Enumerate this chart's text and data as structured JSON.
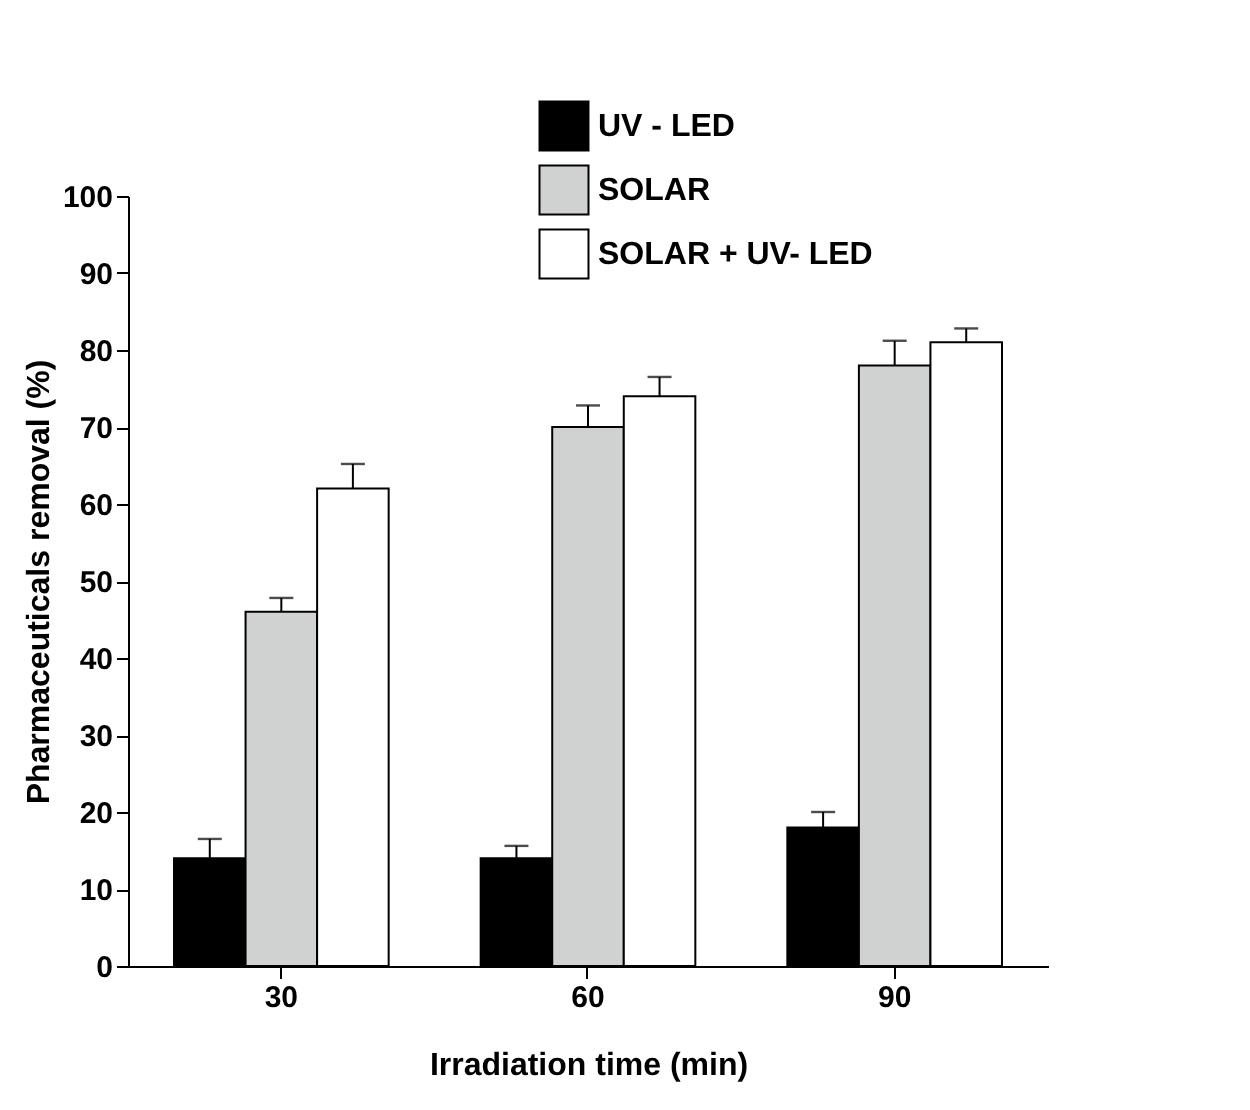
{
  "chart_data": {
    "type": "bar",
    "xlabel": "Irradiation time (min)",
    "ylabel": "Pharmaceuticals removal (%)",
    "categories": [
      "30",
      "60",
      "90"
    ],
    "series": [
      {
        "name": "UV - LED",
        "color": "#000000",
        "values": [
          14,
          14,
          18
        ],
        "errors": [
          [
            14,
            16.5
          ],
          [
            14,
            15.6
          ],
          [
            18,
            20
          ]
        ]
      },
      {
        "name": "SOLAR",
        "color": "#d0d2d1",
        "values": [
          46,
          70,
          78
        ],
        "errors": [
          [
            46,
            47.8
          ],
          [
            70,
            72.8
          ],
          [
            78,
            81.2
          ]
        ]
      },
      {
        "name": "SOLAR + UV- LED",
        "color": "#ffffff",
        "values": [
          62,
          74,
          81
        ],
        "errors": [
          [
            62,
            65.2
          ],
          [
            74,
            76.5
          ],
          [
            81,
            82.8
          ]
        ]
      }
    ],
    "ylim": [
      0,
      100
    ],
    "yticks": [
      0,
      10,
      20,
      30,
      40,
      50,
      60,
      70,
      80,
      90,
      100
    ],
    "grid": false,
    "legend": "top right"
  }
}
